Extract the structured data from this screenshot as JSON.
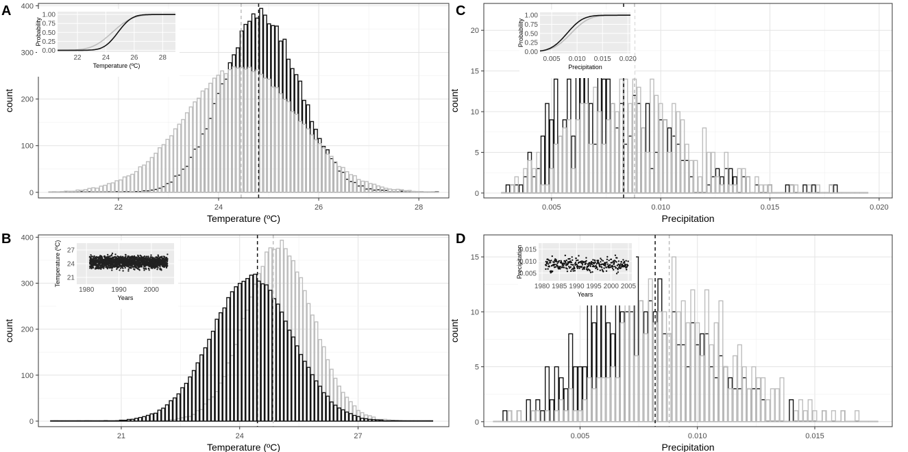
{
  "figure": {
    "colors": {
      "series_black": "#111111",
      "series_grey": "#bdbdbd",
      "grid": "#e3e3e3",
      "inset_bg": "#ebebeb",
      "frame": "#333333"
    }
  },
  "chart_data": [
    {
      "id": "A",
      "label": "A",
      "type": "bar",
      "title": "",
      "xlabel": "Temperature (ºC)",
      "ylabel": "count",
      "xlim": [
        20.4,
        28.6
      ],
      "ylim": [
        -12,
        405
      ],
      "xticks": [
        22,
        24,
        26,
        28
      ],
      "yticks": [
        0,
        100,
        200,
        300,
        400
      ],
      "bins": {
        "start": 20.6,
        "end": 28.4,
        "count": 100
      },
      "series": [
        {
          "name": "black",
          "color": "#111111",
          "dist": "normal",
          "mean": 24.85,
          "sd": 0.77,
          "peak": 382,
          "ragged": 14
        },
        {
          "name": "grey",
          "color": "#bdbdbd",
          "dist": "normal",
          "mean": 24.45,
          "sd": 1.12,
          "peak": 270,
          "ragged": 7
        }
      ],
      "vlines": [
        {
          "x": 24.8,
          "color": "#111111"
        },
        {
          "x": 24.45,
          "color": "#bdbdbd"
        }
      ],
      "inset": {
        "type": "line",
        "xlabel": "Temperature (ºC)",
        "ylabel": "Probability",
        "xlim": [
          20.6,
          28.9
        ],
        "ylim": [
          -0.05,
          1.08
        ],
        "xticks": [
          22,
          24,
          26,
          28
        ],
        "yticks": [
          "0.00",
          "0.25",
          "0.50",
          "0.75",
          "1.00"
        ],
        "yticks_values": [
          0,
          0.25,
          0.5,
          0.75,
          1.0
        ],
        "series": [
          {
            "name": "grey",
            "color": "#bdbdbd",
            "cdf_mean": 24.45,
            "cdf_sd": 1.12
          },
          {
            "name": "black",
            "color": "#111111",
            "cdf_mean": 24.85,
            "cdf_sd": 0.77
          }
        ]
      }
    },
    {
      "id": "B",
      "label": "B",
      "type": "bar",
      "title": "",
      "xlabel": "Temperature (ºC)",
      "ylabel": "count",
      "xlim": [
        18.9,
        29.3
      ],
      "ylim": [
        -12,
        405
      ],
      "xticks": [
        21,
        24,
        27
      ],
      "yticks": [
        0,
        100,
        200,
        300,
        400
      ],
      "bins": {
        "start": 19.2,
        "end": 28.9,
        "count": 100
      },
      "series": [
        {
          "name": "grey",
          "color": "#bdbdbd",
          "dist": "normal",
          "mean": 25.0,
          "sd": 0.85,
          "peak": 385,
          "ragged": 10
        },
        {
          "name": "black",
          "color": "#111111",
          "dist": "normal",
          "mean": 24.3,
          "sd": 1.02,
          "peak": 315,
          "ragged": 6
        }
      ],
      "vlines": [
        {
          "x": 24.45,
          "color": "#111111"
        },
        {
          "x": 24.85,
          "color": "#bdbdbd"
        }
      ],
      "inset": {
        "type": "scatter",
        "xlabel": "Years",
        "ylabel": "Temperature (ºC)",
        "xlim": [
          1977,
          2007
        ],
        "ylim": [
          19.5,
          28.5
        ],
        "xticks": [
          1980,
          1990,
          2000
        ],
        "yticks": [
          "21",
          "24",
          "27"
        ],
        "yticks_values": [
          21,
          24,
          27
        ],
        "series": [
          {
            "name": "black",
            "color": "#222222",
            "from": 1981,
            "to": 2005,
            "mean": 24.3,
            "spread": 1.7,
            "n": 1700
          }
        ]
      }
    },
    {
      "id": "C",
      "label": "C",
      "type": "bar",
      "title": "",
      "xlabel": "Precipitation",
      "ylabel": "count",
      "xlim": [
        0.0019,
        0.0206
      ],
      "ylim": [
        -0.6,
        23.3
      ],
      "xticks": [
        "0.005",
        "0.010",
        "0.015",
        "0.020"
      ],
      "xticks_values": [
        0.005,
        0.01,
        0.015,
        0.02
      ],
      "yticks": [
        0,
        5,
        10,
        15,
        20
      ],
      "bins": {
        "start": 0.0027,
        "end": 0.0195,
        "count": 84
      },
      "series": [
        {
          "name": "black",
          "color": "#111111",
          "dist": "skew",
          "mode": 0.0062,
          "sd_left": 0.0012,
          "sd_right": 0.003,
          "peak": 13,
          "ragged": 7
        },
        {
          "name": "grey",
          "color": "#bdbdbd",
          "dist": "skew",
          "mode": 0.0085,
          "sd_left": 0.0025,
          "sd_right": 0.0028,
          "peak": 10,
          "ragged": 5
        }
      ],
      "vlines": [
        {
          "x": 0.0083,
          "color": "#111111"
        },
        {
          "x": 0.0088,
          "color": "#bdbdbd"
        }
      ],
      "inset": {
        "type": "line",
        "xlabel": "Precipitation",
        "ylabel": "Probability",
        "xlim": [
          0.0027,
          0.0205
        ],
        "ylim": [
          -0.05,
          1.08
        ],
        "xticks": [
          "0.005",
          "0.010",
          "0.015",
          "0.020"
        ],
        "xticks_values": [
          0.005,
          0.01,
          0.015,
          0.02
        ],
        "yticks": [
          "0.00",
          "0.25",
          "0.50",
          "0.75",
          "1.00"
        ],
        "yticks_values": [
          0,
          0.25,
          0.5,
          0.75,
          1.0
        ],
        "series": [
          {
            "name": "grey",
            "color": "#bdbdbd",
            "cdf_mean": 0.0088,
            "cdf_sd": 0.0028
          },
          {
            "name": "black",
            "color": "#111111",
            "cdf_mean": 0.008,
            "cdf_sd": 0.0025
          }
        ]
      }
    },
    {
      "id": "D",
      "label": "D",
      "type": "bar",
      "title": "",
      "xlabel": "Precipitation",
      "ylabel": "count",
      "xlim": [
        0.0009,
        0.0183
      ],
      "ylim": [
        -0.45,
        17.0
      ],
      "xticks": [
        "0.005",
        "0.010",
        "0.015"
      ],
      "xticks_values": [
        0.005,
        0.01,
        0.015
      ],
      "yticks": [
        0,
        5,
        10,
        15
      ],
      "bins": {
        "start": 0.0013,
        "end": 0.0177,
        "count": 82
      },
      "series": [
        {
          "name": "black",
          "color": "#111111",
          "dist": "skew",
          "mode": 0.0068,
          "sd_left": 0.002,
          "sd_right": 0.003,
          "peak": 11,
          "ragged": 4
        },
        {
          "name": "grey",
          "color": "#bdbdbd",
          "dist": "skew",
          "mode": 0.0085,
          "sd_left": 0.002,
          "sd_right": 0.0028,
          "peak": 11,
          "ragged": 4
        }
      ],
      "vlines": [
        {
          "x": 0.0082,
          "color": "#111111"
        },
        {
          "x": 0.0088,
          "color": "#bdbdbd"
        }
      ],
      "inset": {
        "type": "scatter",
        "xlabel": "Years",
        "ylabel": "Precipitation",
        "xlim": [
          1979,
          2006
        ],
        "ylim": [
          0.0018,
          0.0175
        ],
        "xticks": [
          "1980",
          "1985",
          "1990",
          "1995",
          "2000",
          "2005"
        ],
        "xticks_values": [
          1980,
          1985,
          1990,
          1995,
          2000,
          2005
        ],
        "yticks": [
          "0.005",
          "0.010",
          "0.015"
        ],
        "yticks_values": [
          0.005,
          0.01,
          0.015
        ],
        "series": [
          {
            "name": "black",
            "color": "#111111",
            "from": 1981,
            "to": 2005,
            "mean": 0.0085,
            "spread": 0.0035,
            "n": 300
          }
        ]
      }
    }
  ]
}
